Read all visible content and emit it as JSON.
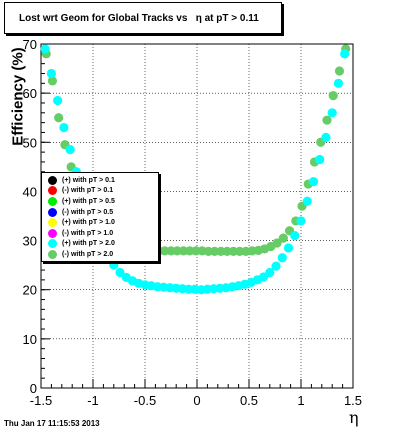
{
  "title": "Lost wrt Geom for Global Tracks vs   η at pT > 0.11",
  "footer_date": "Thu Jan 17 11:15:53 2013",
  "chart_data": {
    "type": "scatter",
    "title": "Lost wrt Geom for Global Tracks vs   η at pT > 0.11",
    "xlabel": "η",
    "ylabel": "Efficiency (%)",
    "xlim": [
      -1.5,
      1.5
    ],
    "ylim": [
      0,
      70
    ],
    "xticks": [
      "-1.5",
      "-1",
      "-0.5",
      "0",
      "0.5",
      "1",
      "1.5"
    ],
    "yticks": [
      "0",
      "10",
      "20",
      "30",
      "40",
      "50",
      "60",
      "70"
    ],
    "grid": true,
    "legend_position": "left-middle",
    "legend": [
      {
        "label": "(+) with pT > 0.1",
        "color": "#000000"
      },
      {
        "label": "(-) with pT > 0.1",
        "color": "#ff0000"
      },
      {
        "label": "(+) with pT > 0.5",
        "color": "#00ee00"
      },
      {
        "label": "(-) with pT > 0.5",
        "color": "#0000ff"
      },
      {
        "label": "(+) with pT > 1.0",
        "color": "#ffff00"
      },
      {
        "label": "(-) with pT > 1.0",
        "color": "#ff00ff"
      },
      {
        "label": "(+) with pT > 2.0",
        "color": "#00ffff"
      },
      {
        "label": "(-) with pT > 2.0",
        "color": "#66cc66"
      }
    ],
    "series": [
      {
        "name": "(-) with pT > 2.0",
        "color": "#66cc66",
        "x": [
          -1.45,
          -1.39,
          -1.33,
          -1.27,
          -1.21,
          -1.15,
          -1.09,
          -1.03,
          -0.97,
          -0.91,
          -0.85,
          -0.79,
          -0.73,
          -0.67,
          -0.61,
          -0.55,
          -0.49,
          -0.43,
          -0.37,
          -0.31,
          -0.25,
          -0.19,
          -0.13,
          -0.07,
          -0.01,
          0.05,
          0.11,
          0.17,
          0.23,
          0.29,
          0.35,
          0.41,
          0.47,
          0.53,
          0.59,
          0.65,
          0.71,
          0.77,
          0.83,
          0.89,
          0.95,
          1.01,
          1.07,
          1.13,
          1.19,
          1.25,
          1.31,
          1.37,
          1.43
        ],
        "y": [
          68.0,
          62.5,
          55.0,
          49.5,
          45.0,
          41.0,
          38.0,
          35.5,
          33.5,
          32.0,
          30.8,
          29.8,
          29.1,
          28.6,
          28.3,
          28.1,
          28.0,
          27.9,
          27.9,
          27.9,
          27.9,
          27.9,
          27.9,
          27.9,
          27.9,
          27.9,
          27.8,
          27.8,
          27.8,
          27.8,
          27.8,
          27.8,
          27.8,
          27.9,
          28.0,
          28.3,
          28.8,
          29.5,
          30.5,
          32.0,
          34.0,
          37.0,
          41.5,
          46.0,
          50.0,
          54.5,
          59.5,
          64.5,
          69.0
        ]
      },
      {
        "name": "(+) with pT > 2.0",
        "color": "#00ffff",
        "x": [
          -1.46,
          -1.4,
          -1.34,
          -1.28,
          -1.22,
          -1.16,
          -1.1,
          -1.04,
          -0.98,
          -0.92,
          -0.86,
          -0.8,
          -0.74,
          -0.68,
          -0.62,
          -0.56,
          -0.5,
          -0.44,
          -0.38,
          -0.32,
          -0.26,
          -0.2,
          -0.14,
          -0.08,
          -0.02,
          0.04,
          0.1,
          0.16,
          0.22,
          0.28,
          0.34,
          0.4,
          0.46,
          0.52,
          0.58,
          0.64,
          0.7,
          0.76,
          0.82,
          0.88,
          0.94,
          1.0,
          1.06,
          1.12,
          1.18,
          1.24,
          1.3,
          1.36,
          1.42
        ],
        "y": [
          69.0,
          64.0,
          58.5,
          53.0,
          48.5,
          44.0,
          40.0,
          36.0,
          32.5,
          29.5,
          27.0,
          25.0,
          23.5,
          22.5,
          21.8,
          21.3,
          21.0,
          20.8,
          20.6,
          20.5,
          20.4,
          20.3,
          20.2,
          20.1,
          20.1,
          20.0,
          20.1,
          20.2,
          20.3,
          20.4,
          20.6,
          20.8,
          21.1,
          21.5,
          22.0,
          22.6,
          23.5,
          24.8,
          26.5,
          28.5,
          31.0,
          34.0,
          38.0,
          42.0,
          46.5,
          51.0,
          56.0,
          62.0,
          68.0
        ]
      }
    ]
  }
}
